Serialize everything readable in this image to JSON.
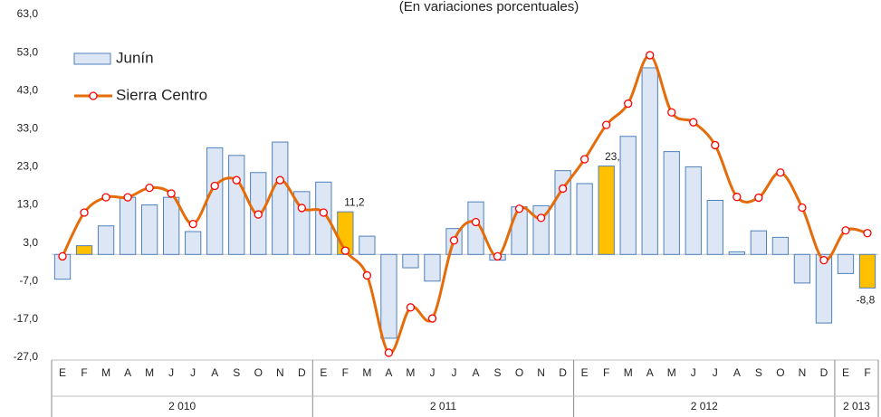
{
  "chart_data": {
    "type": "bar-line",
    "subtitle": "(En variaciones porcentuales)",
    "groups": [
      {
        "label": "2 010",
        "categories": [
          "E",
          "F",
          "M",
          "A",
          "M",
          "J",
          "J",
          "A",
          "S",
          "O",
          "N",
          "D"
        ]
      },
      {
        "label": "2 011",
        "categories": [
          "E",
          "F",
          "M",
          "A",
          "M",
          "J",
          "J",
          "A",
          "S",
          "O",
          "N",
          "D"
        ]
      },
      {
        "label": "2 012",
        "categories": [
          "E",
          "F",
          "M",
          "A",
          "M",
          "J",
          "J",
          "A",
          "S",
          "O",
          "N",
          "D"
        ]
      },
      {
        "label": "2 013",
        "categories": [
          "E",
          "F"
        ]
      }
    ],
    "series": [
      {
        "name": "Junín",
        "type": "bar",
        "color": "#dce6f5",
        "border": "#4f81bd",
        "colors": [
          null,
          "#ffc000",
          null,
          null,
          null,
          null,
          null,
          null,
          null,
          null,
          null,
          null,
          null,
          "#ffc000",
          null,
          null,
          null,
          null,
          null,
          null,
          null,
          null,
          null,
          null,
          null,
          "#ffc000",
          null,
          null,
          null,
          null,
          null,
          null,
          null,
          null,
          null,
          null,
          null,
          "#ffc000"
        ],
        "values": [
          -6.5,
          2.3,
          7.5,
          15,
          13,
          15,
          6,
          28,
          26,
          21.5,
          29.5,
          16.5,
          19,
          11.2,
          4.8,
          -22,
          -3.5,
          -7,
          6.8,
          13.8,
          -1.5,
          12.5,
          12.8,
          22,
          18.6,
          23.2,
          31,
          49,
          27,
          23,
          14.2,
          0.7,
          6.2,
          4.5,
          -7.5,
          -18,
          -5,
          -8.8
        ],
        "value_labels": [
          null,
          null,
          null,
          null,
          null,
          null,
          null,
          null,
          null,
          null,
          null,
          null,
          null,
          "11,2",
          null,
          null,
          null,
          null,
          null,
          null,
          null,
          null,
          null,
          null,
          null,
          "23,2",
          null,
          null,
          null,
          null,
          null,
          null,
          null,
          null,
          null,
          null,
          null,
          "-8,8"
        ]
      },
      {
        "name": "Sierra Centro",
        "type": "line",
        "color": "#e46c0a",
        "marker_color": "#ff0000",
        "values": [
          -0.5,
          11,
          15,
          15,
          17.5,
          16,
          8,
          18,
          19.5,
          10.5,
          19.5,
          12.2,
          11,
          1,
          -5.5,
          -25.8,
          -13.9,
          -16.8,
          3.7,
          8.5,
          -0.5,
          12,
          9.6,
          17.3,
          25,
          34,
          39.6,
          52.3,
          37.3,
          34.7,
          28.7,
          15.1,
          14.9,
          21.5,
          12.3,
          -1.5,
          6.3,
          5.6
        ]
      }
    ],
    "ylim": [
      -27,
      63
    ],
    "yticks": [
      {
        "value": -27,
        "label": "-27,0"
      },
      {
        "value": -17,
        "label": "-17,0"
      },
      {
        "value": -7,
        "label": "-7,0"
      },
      {
        "value": 3,
        "label": "3,0"
      },
      {
        "value": 13,
        "label": "13,0"
      },
      {
        "value": 23,
        "label": "23,0"
      },
      {
        "value": 33,
        "label": "33,0"
      },
      {
        "value": 43,
        "label": "43,0"
      },
      {
        "value": 53,
        "label": "53,0"
      },
      {
        "value": 63,
        "label": "63,0"
      }
    ],
    "legend": "top-left"
  }
}
